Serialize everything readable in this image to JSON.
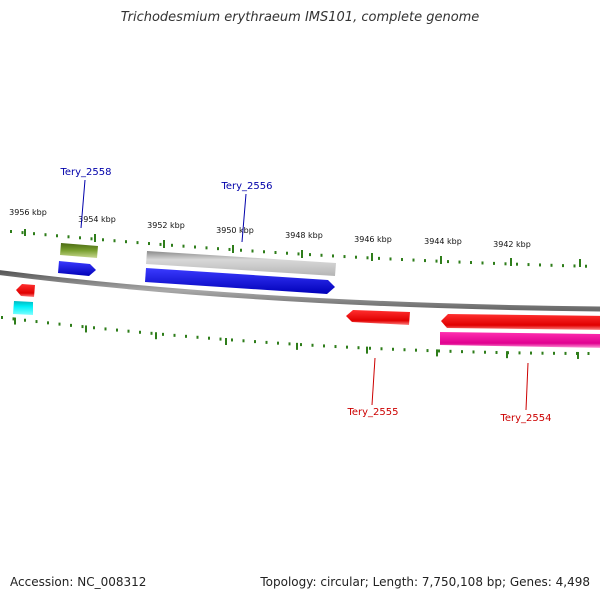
{
  "title": "Trichodesmium erythraeum IMS101, complete genome",
  "footer": {
    "accession": "Accession: NC_008312",
    "summary": "Topology: circular; Length: 7,750,108 bp; Genes: 4,498"
  },
  "ticks": [
    {
      "label": "3956 kbp"
    },
    {
      "label": "3954 kbp"
    },
    {
      "label": "3952 kbp"
    },
    {
      "label": "3950 kbp"
    },
    {
      "label": "3948 kbp"
    },
    {
      "label": "3946 kbp"
    },
    {
      "label": "3944 kbp"
    },
    {
      "label": "3942 kbp"
    }
  ],
  "gene_labels": [
    {
      "name": "Tery_2558",
      "color": "#0000aa"
    },
    {
      "name": "Tery_2556",
      "color": "#0000aa"
    },
    {
      "name": "Tery_2555",
      "color": "#cc0000"
    },
    {
      "name": "Tery_2554",
      "color": "#cc0000"
    }
  ],
  "colors": {
    "backbone": "#7a7a7a",
    "tick": "#2e7d1a",
    "blue_gene": "#0000ee",
    "olive_gene": "#5f7f1f",
    "gray_gene": "#c0c0c0",
    "red_gene": "#ee0000",
    "magenta_gene": "#ee0099",
    "cyan_gene": "#00e5ee"
  }
}
